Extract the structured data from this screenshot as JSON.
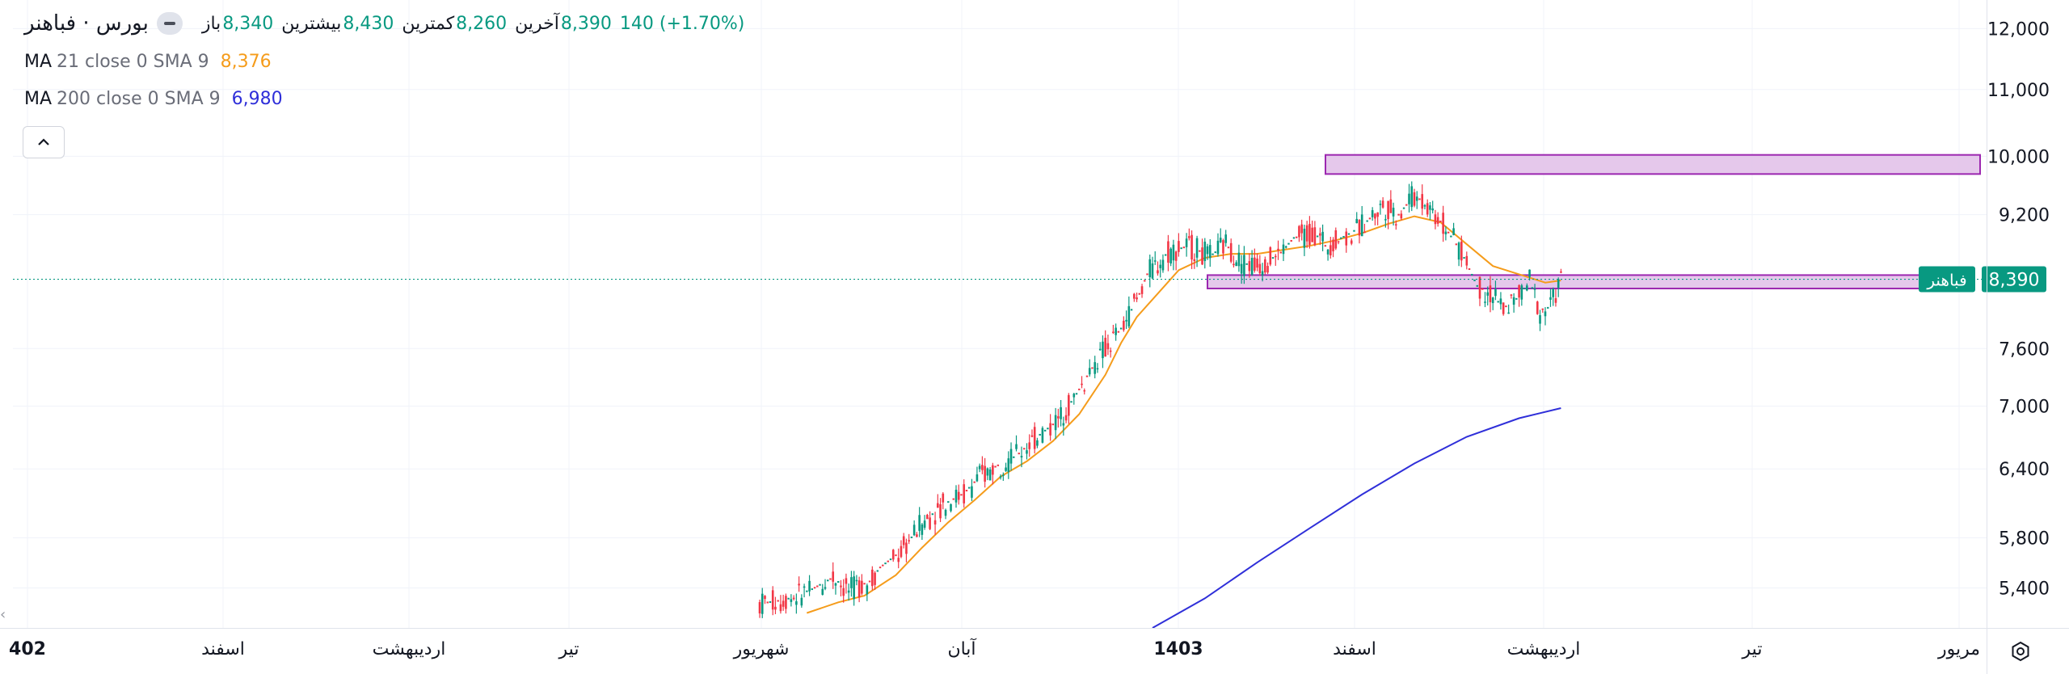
{
  "header": {
    "symbol_title": "بورس · فباهنر",
    "open_label": "باز",
    "open_value": "8,340",
    "high_label": "بیشترین",
    "high_value": "8,430",
    "low_label": "کمترین",
    "low_value": "8,260",
    "close_label": "آخرین",
    "close_value": "8,390",
    "change": "140 (+1.70%)"
  },
  "indicators": [
    {
      "name": "MA",
      "args": "21 close 0 SMA 9",
      "value": "8,376",
      "color": "#f59c1b"
    },
    {
      "name": "MA",
      "args": "200 close 0 SMA 9",
      "value": "6,980",
      "color": "#2f2fd9"
    }
  ],
  "price_label": {
    "symbol": "فباهنر",
    "value": "8,390",
    "color": "#089981"
  },
  "colors": {
    "up": "#089981",
    "down": "#f23645",
    "zone_fill": "#e1bee7",
    "zone_border": "#9c27b0",
    "grid": "#f0f3fa"
  },
  "icons": {
    "collapse": "chevron-up-icon",
    "settings": "settings-icon",
    "remove": "minus-icon"
  },
  "chart_data": {
    "type": "candlestick",
    "y_scale": "log",
    "ylim": [
      5100,
      12500
    ],
    "y_ticks": [
      "12,000",
      "11,000",
      "10,000",
      "9,200",
      "7,600",
      "7,000",
      "6,400",
      "5,800",
      "5,400"
    ],
    "y_tick_values": [
      12000,
      11000,
      10000,
      9200,
      7600,
      7000,
      6400,
      5800,
      5400
    ],
    "x_ticks": [
      {
        "label": "402",
        "bold": true
      },
      {
        "label": "اسفند",
        "bold": false
      },
      {
        "label": "اردیبهشت",
        "bold": false
      },
      {
        "label": "تیر",
        "bold": false
      },
      {
        "label": "شهریور",
        "bold": false
      },
      {
        "label": "آبان",
        "bold": false
      },
      {
        "label": "1403",
        "bold": true
      },
      {
        "label": "اسفند",
        "bold": false
      },
      {
        "label": "اردیبهشت",
        "bold": false
      },
      {
        "label": "تیر",
        "bold": false
      },
      {
        "label": "مریور",
        "bold": false
      }
    ],
    "last_price": 8390,
    "zones": [
      {
        "from": 9750,
        "to": 10020
      },
      {
        "from": 8280,
        "to": 8440
      }
    ],
    "trend_points": [
      [
        0,
        5280
      ],
      [
        10,
        5310
      ],
      [
        20,
        5390
      ],
      [
        28,
        5480
      ],
      [
        34,
        5380
      ],
      [
        42,
        5450
      ],
      [
        46,
        5560
      ],
      [
        54,
        5690
      ],
      [
        62,
        5920
      ],
      [
        70,
        6080
      ],
      [
        78,
        6180
      ],
      [
        84,
        6330
      ],
      [
        90,
        6420
      ],
      [
        98,
        6520
      ],
      [
        106,
        6700
      ],
      [
        114,
        6860
      ],
      [
        120,
        7080
      ],
      [
        126,
        7350
      ],
      [
        132,
        7600
      ],
      [
        138,
        7820
      ],
      [
        144,
        8140
      ],
      [
        148,
        8450
      ],
      [
        156,
        8720
      ],
      [
        164,
        8800
      ],
      [
        172,
        8670
      ],
      [
        178,
        8820
      ],
      [
        184,
        8580
      ],
      [
        190,
        8560
      ],
      [
        198,
        8680
      ],
      [
        204,
        8900
      ],
      [
        212,
        8960
      ],
      [
        216,
        8800
      ],
      [
        224,
        8930
      ],
      [
        230,
        9050
      ],
      [
        238,
        9320
      ],
      [
        244,
        9200
      ],
      [
        250,
        9460
      ],
      [
        256,
        9300
      ],
      [
        262,
        9020
      ],
      [
        268,
        8720
      ],
      [
        274,
        8310
      ],
      [
        280,
        8200
      ],
      [
        284,
        8050
      ],
      [
        290,
        8180
      ],
      [
        294,
        8380
      ],
      [
        298,
        8010
      ],
      [
        302,
        8070
      ],
      [
        306,
        8390
      ]
    ],
    "ma21_points": [
      [
        18,
        5210
      ],
      [
        30,
        5290
      ],
      [
        40,
        5340
      ],
      [
        52,
        5500
      ],
      [
        62,
        5720
      ],
      [
        72,
        5930
      ],
      [
        82,
        6120
      ],
      [
        92,
        6330
      ],
      [
        102,
        6470
      ],
      [
        112,
        6660
      ],
      [
        122,
        6920
      ],
      [
        132,
        7320
      ],
      [
        138,
        7660
      ],
      [
        144,
        7950
      ],
      [
        152,
        8220
      ],
      [
        160,
        8500
      ],
      [
        170,
        8650
      ],
      [
        180,
        8700
      ],
      [
        190,
        8700
      ],
      [
        200,
        8750
      ],
      [
        210,
        8800
      ],
      [
        220,
        8870
      ],
      [
        230,
        8960
      ],
      [
        240,
        9080
      ],
      [
        250,
        9180
      ],
      [
        260,
        9100
      ],
      [
        270,
        8820
      ],
      [
        280,
        8550
      ],
      [
        290,
        8450
      ],
      [
        300,
        8350
      ],
      [
        306,
        8376
      ]
    ],
    "ma200_points": [
      [
        150,
        5100
      ],
      [
        170,
        5320
      ],
      [
        190,
        5600
      ],
      [
        210,
        5880
      ],
      [
        230,
        6170
      ],
      [
        250,
        6450
      ],
      [
        270,
        6700
      ],
      [
        290,
        6880
      ],
      [
        306,
        6980
      ]
    ]
  }
}
